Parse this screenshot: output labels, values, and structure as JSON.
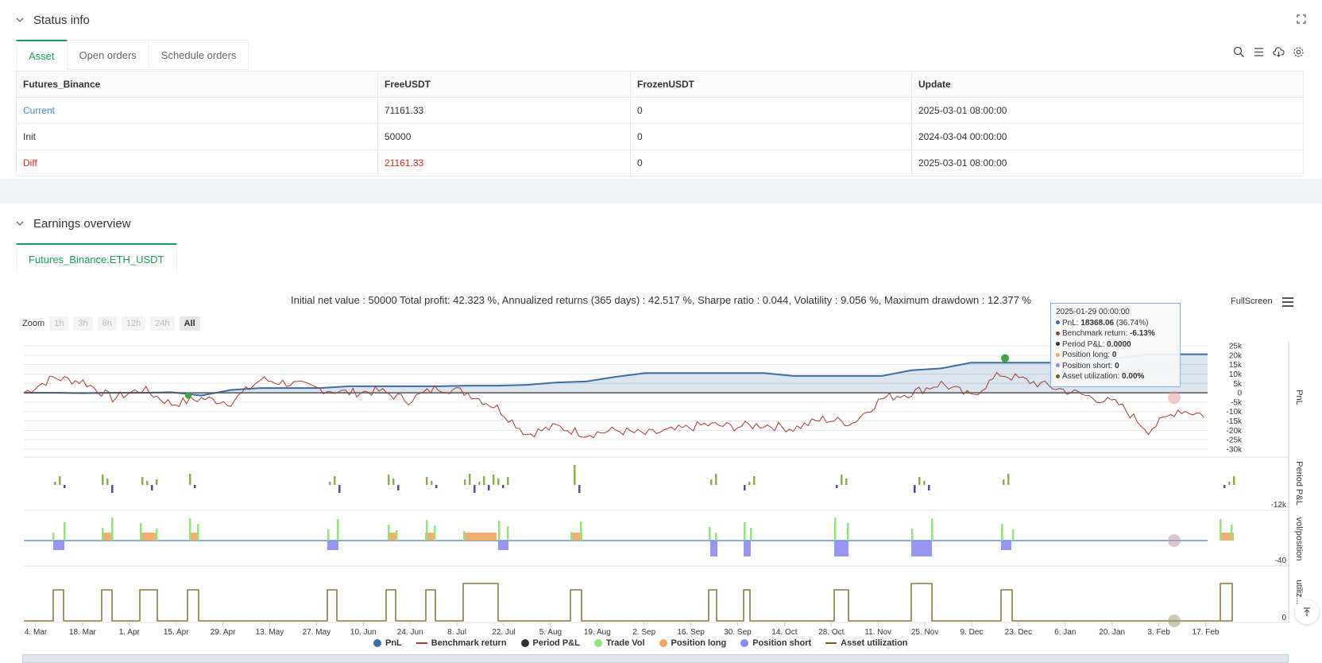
{
  "status": {
    "title": "Status info",
    "tabs": [
      "Asset",
      "Open orders",
      "Schedule orders"
    ],
    "table": {
      "headers": [
        "Futures_Binance",
        "FreeUSDT",
        "FrozenUSDT",
        "Update"
      ],
      "rows": [
        [
          "Current",
          "71161.33",
          "0",
          "2025-03-01 08:00:00"
        ],
        [
          "Init",
          "50000",
          "0",
          "2024-03-04 00:00:00"
        ],
        [
          "Diff",
          "21161.33",
          "0",
          "2025-03-01 08:00:00"
        ]
      ]
    }
  },
  "earnings": {
    "title": "Earnings overview",
    "tab": "Futures_Binance.ETH_USDT",
    "summary": "Initial net value : 50000 Total profit: 42.323 %, Annualized returns (365 days) : 42.517 %, Sharpe ratio : 0.044, Volatility : 9.056 %, Maximum drawdown : 12.377 %",
    "zoom_label": "Zoom",
    "zoom_buttons": [
      "1h",
      "3h",
      "8h",
      "12h",
      "24h",
      "All"
    ],
    "fullscreen_label": "FullScreen",
    "tooltip": {
      "date": "2025-01-29 00:00:00",
      "pnl_label": "PnL:",
      "pnl_value": "18368.06",
      "pnl_pct": "(36.74%)",
      "bench_label": "Benchmark return:",
      "bench_value": "-6.13%",
      "period_label": "Period P&L:",
      "period_value": "0.0000",
      "long_label": "Position long:",
      "long_value": "0",
      "short_label": "Position short:",
      "short_value": "0",
      "util_label": "Asset utilization:",
      "util_value": "0.00%"
    },
    "legend": [
      "PnL",
      "Benchmark return",
      "Period P&L",
      "Trade Vol",
      "Position long",
      "Position short",
      "Asset utilization"
    ],
    "colors": {
      "pnl": "#3a6ea5",
      "bench": "#a33a2c",
      "period": "#333333",
      "vol": "#8ee57a",
      "long": "#f5a462",
      "short": "#8c8cf0",
      "util": "#6b5f16",
      "accent": "#18a058"
    }
  },
  "chart_data": {
    "type": "line",
    "x_ticks": [
      "4. Mar",
      "18. Mar",
      "1. Apr",
      "15. Apr",
      "29. Apr",
      "13. May",
      "27. May",
      "10. Jun",
      "24. Jun",
      "8. Jul",
      "22. Jul",
      "5. Aug",
      "19. Aug",
      "2. Sep",
      "16. Sep",
      "30. Sep",
      "14. Oct",
      "28. Oct",
      "11. Nov",
      "25. Nov",
      "9. Dec",
      "23. Dec",
      "6. Jan",
      "20. Jan",
      "3. Feb",
      "17. Feb"
    ],
    "y_ticks_pnl": [
      "25k",
      "20k",
      "15k",
      "10k",
      "5k",
      "0",
      "-5k",
      "-10k",
      "-15k",
      "-20k",
      "-25k",
      "-30k"
    ],
    "pane_labels": [
      "PnL",
      "Period P&L",
      "vol/position",
      "utiliz..."
    ],
    "pane_ticks": [
      "-12k",
      "-40",
      "0"
    ],
    "pnl_series": [
      0,
      0,
      -200,
      0,
      0,
      300,
      -1500,
      1500,
      2500,
      2500,
      2500,
      3500,
      3500,
      3500,
      3500,
      3800,
      3800,
      4200,
      5500,
      6000,
      8500,
      10500,
      10500,
      10500,
      10500,
      10500,
      9000,
      9000,
      9000,
      9000,
      12000,
      13000,
      16000,
      16000,
      16000,
      16000,
      18500,
      18368,
      20500,
      20500,
      20500
    ],
    "bench_series": [
      0,
      8000,
      6000,
      -3000,
      2000,
      -6000,
      -3000,
      -5000,
      7000,
      5000,
      2000,
      0,
      1000,
      -4000,
      3000,
      0,
      -8000,
      -22000,
      -18000,
      -22000,
      -20000,
      -22000,
      -20000,
      -17000,
      -18000,
      -17000,
      -19000,
      -14000,
      -16000,
      -3000,
      0,
      5000,
      -2000,
      10000,
      6000,
      2000,
      -2000,
      -6130,
      -20000,
      -9000,
      -12000
    ]
  }
}
